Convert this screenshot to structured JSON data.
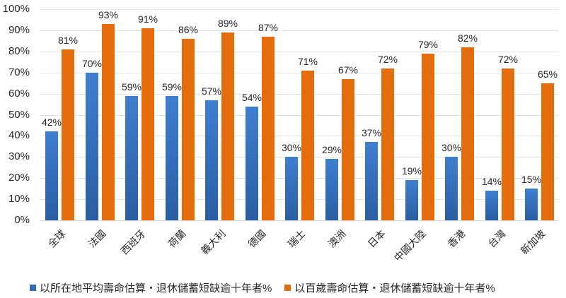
{
  "chart_data": {
    "type": "bar",
    "title": "",
    "xlabel": "",
    "ylabel": "",
    "ylim": [
      0,
      100
    ],
    "yticks": [
      "0%",
      "10%",
      "20%",
      "30%",
      "40%",
      "50%",
      "60%",
      "70%",
      "80%",
      "90%",
      "100%"
    ],
    "grid": true,
    "legend_position": "bottom",
    "categories": [
      "全球",
      "法國",
      "西班牙",
      "荷蘭",
      "義大利",
      "德國",
      "瑞士",
      "澳洲",
      "日本",
      "中國大陸",
      "香港",
      "台灣",
      "新加坡"
    ],
    "series": [
      {
        "name": "以所在地平均壽命估算，退休儲蓄短缺逾十年者%",
        "color": "#2f6cb8",
        "values": [
          42,
          70,
          59,
          59,
          57,
          54,
          30,
          29,
          37,
          19,
          30,
          14,
          15
        ],
        "labels": [
          "42%",
          "70%",
          "59%",
          "59%",
          "57%",
          "54%",
          "30%",
          "29%",
          "37%",
          "19%",
          "30%",
          "14%",
          "15%"
        ]
      },
      {
        "name": "以百歲壽命估算，退休儲蓄短缺逾十年者%",
        "color": "#e46c0a",
        "values": [
          81,
          93,
          91,
          86,
          89,
          87,
          71,
          67,
          72,
          79,
          82,
          72,
          65
        ],
        "labels": [
          "81%",
          "93%",
          "91%",
          "86%",
          "89%",
          "87%",
          "71%",
          "67%",
          "72%",
          "79%",
          "82%",
          "72%",
          "65%"
        ]
      }
    ]
  },
  "legend": {
    "items": [
      {
        "label": "以所在地平均壽命估算・退休儲蓄短缺逾十年者%",
        "color": "#2f6cb8"
      },
      {
        "label": "以百歲壽命估算・退休儲蓄短缺逾十年者%",
        "color": "#e46c0a"
      }
    ]
  }
}
